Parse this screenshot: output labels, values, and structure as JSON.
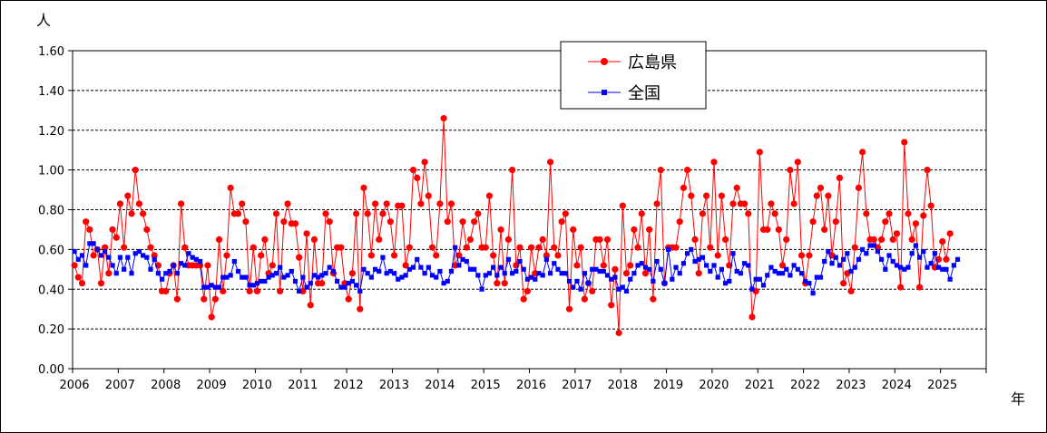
{
  "chart_data": {
    "type": "line",
    "y_unit_label": "人",
    "x_unit_label": "年",
    "ylim": [
      0,
      1.6
    ],
    "yticks": [
      "0.00",
      "0.20",
      "0.40",
      "0.60",
      "0.80",
      "1.00",
      "1.20",
      "1.40",
      "1.60"
    ],
    "xticks": [
      "2006",
      "2007",
      "2008",
      "2009",
      "2010",
      "2011",
      "2012",
      "2013",
      "2014",
      "2015",
      "2016",
      "2017",
      "2018",
      "2019",
      "2020",
      "2021",
      "2022",
      "2023",
      "2024",
      "2025"
    ],
    "x_start_year": 2006,
    "grid": true,
    "legend_position": "top-center",
    "series": [
      {
        "name": "広島県",
        "color": "#ff0000",
        "marker": "circle",
        "values": [
          0.52,
          0.46,
          0.43,
          0.74,
          0.7,
          0.57,
          0.6,
          0.43,
          0.61,
          0.48,
          0.7,
          0.66,
          0.83,
          0.61,
          0.87,
          0.78,
          1.0,
          0.83,
          0.78,
          0.7,
          0.61,
          0.57,
          0.52,
          0.39,
          0.39,
          0.48,
          0.52,
          0.35,
          0.83,
          0.61,
          0.52,
          0.52,
          0.52,
          0.52,
          0.35,
          0.52,
          0.26,
          0.35,
          0.65,
          0.39,
          0.57,
          0.91,
          0.78,
          0.78,
          0.83,
          0.74,
          0.39,
          0.61,
          0.39,
          0.57,
          0.65,
          0.48,
          0.52,
          0.78,
          0.39,
          0.74,
          0.83,
          0.73,
          0.73,
          0.56,
          0.39,
          0.68,
          0.32,
          0.65,
          0.43,
          0.43,
          0.78,
          0.74,
          0.48,
          0.61,
          0.61,
          0.43,
          0.35,
          0.48,
          0.78,
          0.3,
          0.91,
          0.78,
          0.57,
          0.83,
          0.65,
          0.78,
          0.83,
          0.74,
          0.57,
          0.82,
          0.82,
          0.52,
          0.61,
          1.0,
          0.96,
          0.83,
          1.04,
          0.87,
          0.61,
          0.57,
          0.83,
          1.26,
          0.74,
          0.83,
          0.52,
          0.57,
          0.74,
          0.61,
          0.65,
          0.74,
          0.78,
          0.61,
          0.61,
          0.87,
          0.57,
          0.43,
          0.7,
          0.43,
          0.65,
          1.0,
          0.52,
          0.61,
          0.35,
          0.39,
          0.61,
          0.48,
          0.61,
          0.65,
          0.57,
          1.04,
          0.61,
          0.57,
          0.74,
          0.78,
          0.3,
          0.7,
          0.52,
          0.61,
          0.35,
          0.43,
          0.39,
          0.65,
          0.65,
          0.52,
          0.65,
          0.32,
          0.5,
          0.18,
          0.82,
          0.48,
          0.52,
          0.7,
          0.61,
          0.78,
          0.48,
          0.7,
          0.35,
          0.83,
          1.0,
          0.43,
          0.61,
          0.61,
          0.61,
          0.74,
          0.91,
          1.0,
          0.87,
          0.65,
          0.48,
          0.78,
          0.87,
          0.61,
          1.04,
          0.57,
          0.87,
          0.65,
          0.52,
          0.83,
          0.91,
          0.83,
          0.83,
          0.78,
          0.26,
          0.39,
          1.09,
          0.7,
          0.7,
          0.83,
          0.78,
          0.7,
          0.52,
          0.65,
          1.0,
          0.83,
          1.04,
          0.57,
          0.43,
          0.57,
          0.74,
          0.87,
          0.91,
          0.7,
          0.87,
          0.57,
          0.74,
          0.96,
          0.43,
          0.48,
          0.39,
          0.61,
          0.91,
          1.09,
          0.78,
          0.65,
          0.65,
          0.61,
          0.65,
          0.74,
          0.78,
          0.65,
          0.68,
          0.41,
          1.14,
          0.78,
          0.65,
          0.73,
          0.41,
          0.77,
          1.0,
          0.82,
          0.51,
          0.55,
          0.64,
          0.55,
          0.68
        ]
      },
      {
        "name": "全国",
        "color": "#0000ff",
        "marker": "square",
        "values": [
          0.59,
          0.55,
          0.57,
          0.52,
          0.63,
          0.63,
          0.6,
          0.57,
          0.59,
          0.56,
          0.52,
          0.48,
          0.56,
          0.5,
          0.56,
          0.48,
          0.58,
          0.59,
          0.57,
          0.56,
          0.5,
          0.55,
          0.48,
          0.45,
          0.48,
          0.49,
          0.52,
          0.48,
          0.53,
          0.52,
          0.58,
          0.56,
          0.55,
          0.54,
          0.41,
          0.41,
          0.42,
          0.41,
          0.41,
          0.46,
          0.46,
          0.47,
          0.54,
          0.49,
          0.46,
          0.46,
          0.42,
          0.42,
          0.43,
          0.44,
          0.44,
          0.46,
          0.47,
          0.48,
          0.51,
          0.46,
          0.47,
          0.49,
          0.44,
          0.39,
          0.46,
          0.41,
          0.43,
          0.47,
          0.46,
          0.47,
          0.48,
          0.51,
          0.49,
          0.44,
          0.41,
          0.41,
          0.43,
          0.44,
          0.42,
          0.39,
          0.5,
          0.48,
          0.46,
          0.5,
          0.49,
          0.56,
          0.48,
          0.49,
          0.48,
          0.45,
          0.46,
          0.47,
          0.5,
          0.51,
          0.55,
          0.51,
          0.48,
          0.51,
          0.47,
          0.46,
          0.49,
          0.43,
          0.44,
          0.49,
          0.61,
          0.52,
          0.55,
          0.54,
          0.5,
          0.5,
          0.47,
          0.4,
          0.47,
          0.48,
          0.51,
          0.47,
          0.51,
          0.48,
          0.55,
          0.48,
          0.49,
          0.54,
          0.5,
          0.45,
          0.46,
          0.45,
          0.48,
          0.47,
          0.55,
          0.48,
          0.53,
          0.5,
          0.48,
          0.48,
          0.44,
          0.41,
          0.44,
          0.4,
          0.48,
          0.43,
          0.5,
          0.5,
          0.49,
          0.49,
          0.47,
          0.45,
          0.46,
          0.4,
          0.41,
          0.39,
          0.45,
          0.48,
          0.52,
          0.53,
          0.51,
          0.5,
          0.44,
          0.54,
          0.5,
          0.43,
          0.6,
          0.45,
          0.51,
          0.48,
          0.53,
          0.58,
          0.6,
          0.54,
          0.55,
          0.56,
          0.52,
          0.49,
          0.52,
          0.46,
          0.5,
          0.43,
          0.44,
          0.58,
          0.49,
          0.48,
          0.53,
          0.52,
          0.4,
          0.45,
          0.45,
          0.42,
          0.47,
          0.51,
          0.49,
          0.48,
          0.48,
          0.5,
          0.47,
          0.52,
          0.5,
          0.48,
          0.44,
          0.43,
          0.38,
          0.46,
          0.46,
          0.54,
          0.59,
          0.53,
          0.56,
          0.52,
          0.55,
          0.58,
          0.49,
          0.51,
          0.55,
          0.6,
          0.58,
          0.62,
          0.62,
          0.59,
          0.55,
          0.5,
          0.57,
          0.54,
          0.52,
          0.51,
          0.5,
          0.51,
          0.58,
          0.62,
          0.56,
          0.59,
          0.51,
          0.53,
          0.58,
          0.51,
          0.5,
          0.5,
          0.45,
          0.52,
          0.55
        ]
      }
    ]
  }
}
